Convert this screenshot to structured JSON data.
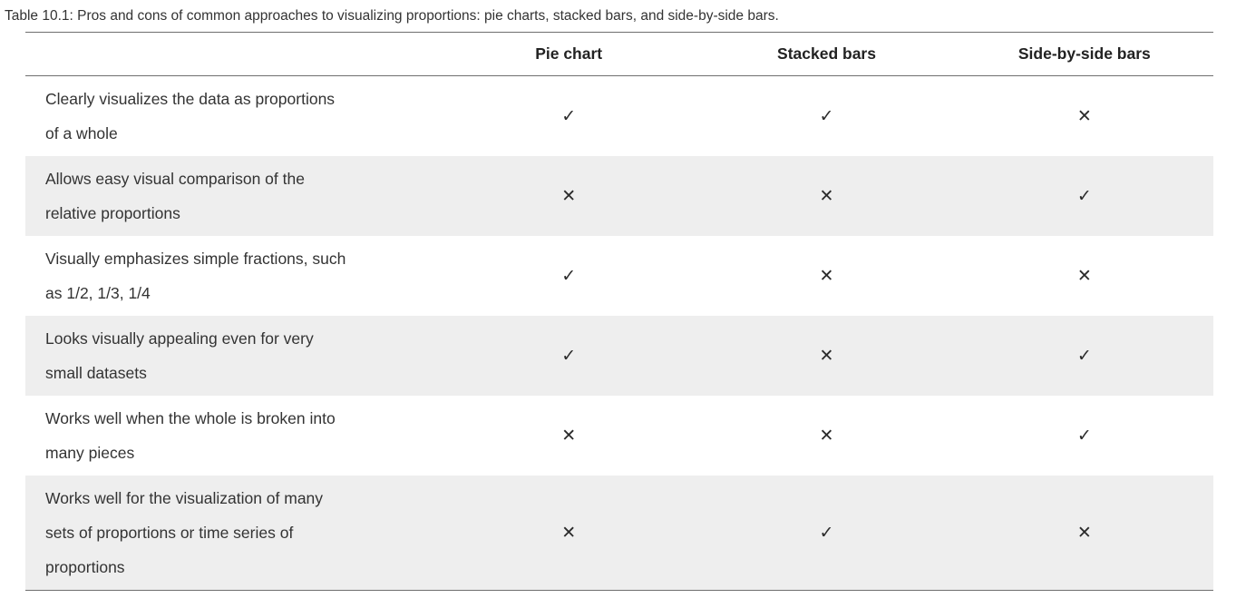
{
  "caption": "Table 10.1: Pros and cons of common approaches to visualizing proportions: pie charts, stacked bars, and side-by-side bars.",
  "table": {
    "columns": [
      "Pie chart",
      "Stacked bars",
      "Side-by-side bars"
    ],
    "mark_glyphs": {
      "check": "✓",
      "cross": "✕"
    },
    "rows": [
      {
        "criterion": "Clearly visualizes the data as proportions of a whole",
        "marks": [
          "✓",
          "✓",
          "✕"
        ]
      },
      {
        "criterion": "Allows easy visual comparison of the relative proportions",
        "marks": [
          "✕",
          "✕",
          "✓"
        ]
      },
      {
        "criterion": "Visually emphasizes simple fractions, such as 1/2, 1/3, 1/4",
        "marks": [
          "✓",
          "✕",
          "✕"
        ]
      },
      {
        "criterion": "Looks visually appealing even for very small datasets",
        "marks": [
          "✓",
          "✕",
          "✓"
        ]
      },
      {
        "criterion": "Works well when the whole is broken into many pieces",
        "marks": [
          "✕",
          "✕",
          "✓"
        ]
      },
      {
        "criterion": "Works well for the visualization of many sets of proportions or time series of proportions",
        "marks": [
          "✕",
          "✓",
          "✕"
        ]
      }
    ]
  },
  "colors": {
    "text": "#333333",
    "header-text": "#222222",
    "border": "#6f6f6f",
    "stripe": "#eeeeee",
    "page-bg": "#ffffff",
    "mark": "#2b2b2b"
  }
}
